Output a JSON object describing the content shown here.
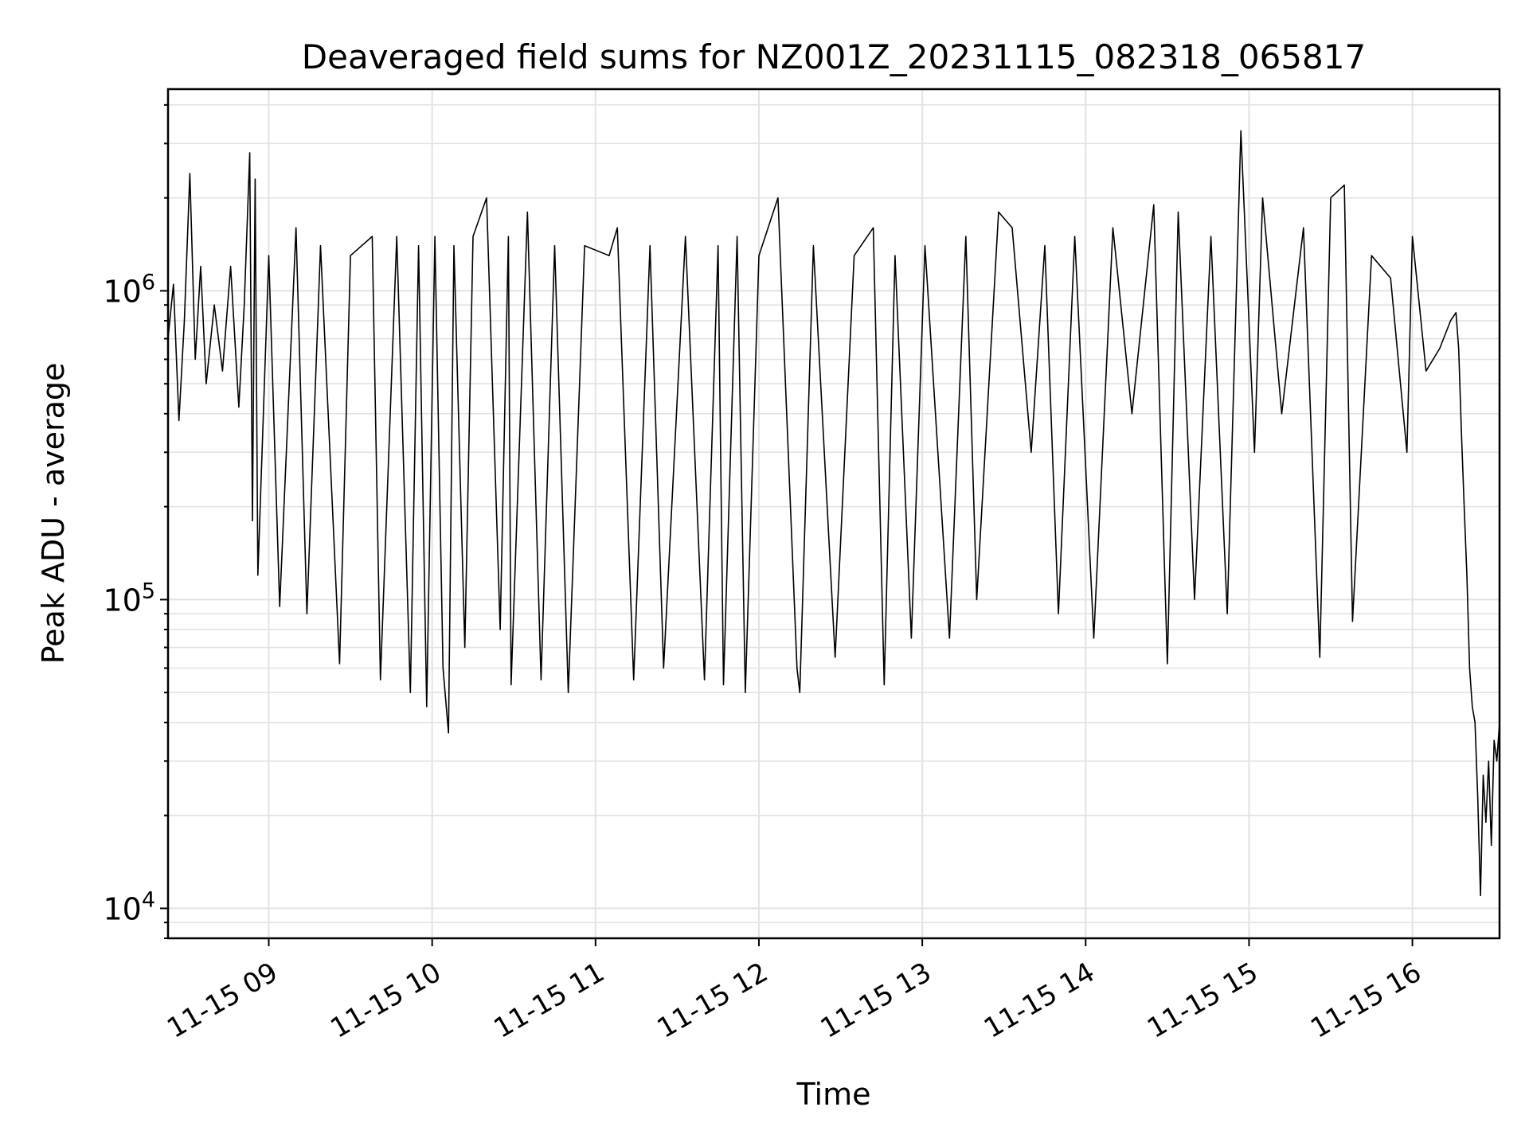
{
  "chart_data": {
    "type": "line",
    "title": "Deaveraged field sums for NZ001Z_20231115_082318_065817",
    "xlabel": "Time",
    "ylabel": "Peak ADU - average",
    "xlim": [
      "2023-11-15 08:23",
      "2023-11-15 16:32"
    ],
    "ylim": [
      8000,
      4500000
    ],
    "yscale": "log",
    "x_ticks": [
      {
        "label": "11-15 09",
        "value": "2023-11-15 09:00"
      },
      {
        "label": "11-15 10",
        "value": "2023-11-15 10:00"
      },
      {
        "label": "11-15 11",
        "value": "2023-11-15 11:00"
      },
      {
        "label": "11-15 12",
        "value": "2023-11-15 12:00"
      },
      {
        "label": "11-15 13",
        "value": "2023-11-15 13:00"
      },
      {
        "label": "11-15 14",
        "value": "2023-11-15 14:00"
      },
      {
        "label": "11-15 15",
        "value": "2023-11-15 15:00"
      },
      {
        "label": "11-15 16",
        "value": "2023-11-15 16:00"
      }
    ],
    "y_ticks": [
      {
        "base": "10",
        "exp": "4",
        "value": 10000
      },
      {
        "base": "10",
        "exp": "5",
        "value": 100000
      },
      {
        "base": "10",
        "exp": "6",
        "value": 1000000
      }
    ],
    "grid": true,
    "series": [
      {
        "color": "#000000",
        "points": [
          [
            "2023-11-15 08:23",
            700000
          ],
          [
            "2023-11-15 08:25",
            1050000
          ],
          [
            "2023-11-15 08:27",
            380000
          ],
          [
            "2023-11-15 08:29",
            800000
          ],
          [
            "2023-11-15 08:31",
            2400000
          ],
          [
            "2023-11-15 08:33",
            600000
          ],
          [
            "2023-11-15 08:35",
            1200000
          ],
          [
            "2023-11-15 08:37",
            500000
          ],
          [
            "2023-11-15 08:40",
            900000
          ],
          [
            "2023-11-15 08:43",
            550000
          ],
          [
            "2023-11-15 08:46",
            1200000
          ],
          [
            "2023-11-15 08:49",
            420000
          ],
          [
            "2023-11-15 08:51",
            900000
          ],
          [
            "2023-11-15 08:53",
            2800000
          ],
          [
            "2023-11-15 08:54",
            180000
          ],
          [
            "2023-11-15 08:55",
            2300000
          ],
          [
            "2023-11-15 08:56",
            120000
          ],
          [
            "2023-11-15 09:00",
            1300000
          ],
          [
            "2023-11-15 09:04",
            95000
          ],
          [
            "2023-11-15 09:10",
            1600000
          ],
          [
            "2023-11-15 09:14",
            90000
          ],
          [
            "2023-11-15 09:19",
            1400000
          ],
          [
            "2023-11-15 09:26",
            62000
          ],
          [
            "2023-11-15 09:30",
            1300000
          ],
          [
            "2023-11-15 09:38",
            1500000
          ],
          [
            "2023-11-15 09:41",
            55000
          ],
          [
            "2023-11-15 09:47",
            1500000
          ],
          [
            "2023-11-15 09:52",
            50000
          ],
          [
            "2023-11-15 09:55",
            1400000
          ],
          [
            "2023-11-15 09:58",
            45000
          ],
          [
            "2023-11-15 10:01",
            1500000
          ],
          [
            "2023-11-15 10:04",
            60000
          ],
          [
            "2023-11-15 10:06",
            37000
          ],
          [
            "2023-11-15 10:08",
            1400000
          ],
          [
            "2023-11-15 10:12",
            70000
          ],
          [
            "2023-11-15 10:15",
            1500000
          ],
          [
            "2023-11-15 10:20",
            2000000
          ],
          [
            "2023-11-15 10:25",
            80000
          ],
          [
            "2023-11-15 10:28",
            1500000
          ],
          [
            "2023-11-15 10:29",
            53000
          ],
          [
            "2023-11-15 10:35",
            1800000
          ],
          [
            "2023-11-15 10:40",
            55000
          ],
          [
            "2023-11-15 10:45",
            1400000
          ],
          [
            "2023-11-15 10:50",
            50000
          ],
          [
            "2023-11-15 10:56",
            1400000
          ],
          [
            "2023-11-15 11:05",
            1300000
          ],
          [
            "2023-11-15 11:08",
            1600000
          ],
          [
            "2023-11-15 11:14",
            55000
          ],
          [
            "2023-11-15 11:20",
            1400000
          ],
          [
            "2023-11-15 11:25",
            60000
          ],
          [
            "2023-11-15 11:33",
            1500000
          ],
          [
            "2023-11-15 11:40",
            55000
          ],
          [
            "2023-11-15 11:45",
            1400000
          ],
          [
            "2023-11-15 11:47",
            53000
          ],
          [
            "2023-11-15 11:52",
            1500000
          ],
          [
            "2023-11-15 11:55",
            50000
          ],
          [
            "2023-11-15 12:00",
            1300000
          ],
          [
            "2023-11-15 12:07",
            2000000
          ],
          [
            "2023-11-15 12:14",
            60000
          ],
          [
            "2023-11-15 12:15",
            50000
          ],
          [
            "2023-11-15 12:20",
            1400000
          ],
          [
            "2023-11-15 12:28",
            65000
          ],
          [
            "2023-11-15 12:35",
            1300000
          ],
          [
            "2023-11-15 12:42",
            1600000
          ],
          [
            "2023-11-15 12:46",
            53000
          ],
          [
            "2023-11-15 12:50",
            1300000
          ],
          [
            "2023-11-15 12:56",
            75000
          ],
          [
            "2023-11-15 13:01",
            1400000
          ],
          [
            "2023-11-15 13:10",
            75000
          ],
          [
            "2023-11-15 13:16",
            1500000
          ],
          [
            "2023-11-15 13:20",
            100000
          ],
          [
            "2023-11-15 13:28",
            1800000
          ],
          [
            "2023-11-15 13:33",
            1600000
          ],
          [
            "2023-11-15 13:40",
            300000
          ],
          [
            "2023-11-15 13:45",
            1400000
          ],
          [
            "2023-11-15 13:50",
            90000
          ],
          [
            "2023-11-15 13:56",
            1500000
          ],
          [
            "2023-11-15 14:03",
            75000
          ],
          [
            "2023-11-15 14:10",
            1600000
          ],
          [
            "2023-11-15 14:17",
            400000
          ],
          [
            "2023-11-15 14:25",
            1900000
          ],
          [
            "2023-11-15 14:30",
            62000
          ],
          [
            "2023-11-15 14:34",
            1800000
          ],
          [
            "2023-11-15 14:40",
            100000
          ],
          [
            "2023-11-15 14:46",
            1500000
          ],
          [
            "2023-11-15 14:52",
            90000
          ],
          [
            "2023-11-15 14:57",
            3300000
          ],
          [
            "2023-11-15 15:02",
            300000
          ],
          [
            "2023-11-15 15:05",
            2000000
          ],
          [
            "2023-11-15 15:12",
            400000
          ],
          [
            "2023-11-15 15:20",
            1600000
          ],
          [
            "2023-11-15 15:26",
            65000
          ],
          [
            "2023-11-15 15:30",
            2000000
          ],
          [
            "2023-11-15 15:35",
            2200000
          ],
          [
            "2023-11-15 15:38",
            85000
          ],
          [
            "2023-11-15 15:45",
            1300000
          ],
          [
            "2023-11-15 15:52",
            1100000
          ],
          [
            "2023-11-15 15:58",
            300000
          ],
          [
            "2023-11-15 16:00",
            1500000
          ],
          [
            "2023-11-15 16:05",
            550000
          ],
          [
            "2023-11-15 16:10",
            650000
          ],
          [
            "2023-11-15 16:14",
            800000
          ],
          [
            "2023-11-15 16:16",
            850000
          ],
          [
            "2023-11-15 16:17",
            650000
          ],
          [
            "2023-11-15 16:18",
            350000
          ],
          [
            "2023-11-15 16:19",
            200000
          ],
          [
            "2023-11-15 16:20",
            120000
          ],
          [
            "2023-11-15 16:21",
            60000
          ],
          [
            "2023-11-15 16:22",
            45000
          ],
          [
            "2023-11-15 16:23",
            40000
          ],
          [
            "2023-11-15 16:24",
            23000
          ],
          [
            "2023-11-15 16:25",
            11000
          ],
          [
            "2023-11-15 16:26",
            27000
          ],
          [
            "2023-11-15 16:27",
            19000
          ],
          [
            "2023-11-15 16:28",
            30000
          ],
          [
            "2023-11-15 16:29",
            16000
          ],
          [
            "2023-11-15 16:30",
            35000
          ],
          [
            "2023-11-15 16:31",
            30000
          ],
          [
            "2023-11-15 16:32",
            40000
          ]
        ]
      }
    ]
  }
}
